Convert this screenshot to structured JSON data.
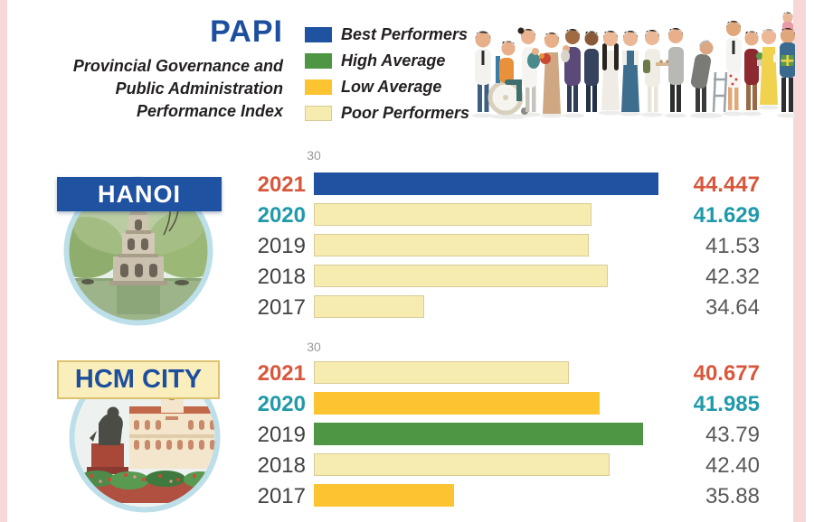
{
  "title_block": {
    "title": "PAPI",
    "subtitle_lines": [
      "Provincial Governance and",
      "Public Administration",
      "Performance Index"
    ]
  },
  "legend": {
    "items": [
      {
        "label": "Best Performers",
        "tier": "best",
        "color": "#2052a2"
      },
      {
        "label": "High Average",
        "tier": "high",
        "color": "#4e9544"
      },
      {
        "label": "Low Average",
        "tier": "low",
        "color": "#fcc431"
      },
      {
        "label": "Poor Performers",
        "tier": "poor",
        "color": "#f7ecb0"
      }
    ]
  },
  "colors": {
    "best": "#2052a2",
    "high": "#4e9544",
    "low": "#fcc431",
    "poor": "#f7ecb0",
    "poor-border": "#d8cb96",
    "accent-red": "#d8573c",
    "accent-teal": "#1f9aaa",
    "year-gray": "#414042",
    "value-gray": "#58595b",
    "axis-gray": "#9a9a9a",
    "papi-blue": "#1d4f9e",
    "frame-pink": "#f8d7d9"
  },
  "chart_data": [
    {
      "type": "bar",
      "title": "HANOI",
      "orientation": "horizontal",
      "axis_start_label": "30",
      "xlim": [
        30,
        45
      ],
      "categories": [
        "2021",
        "2020",
        "2019",
        "2018",
        "2017"
      ],
      "values": [
        44.447,
        41.629,
        41.53,
        42.32,
        34.64
      ],
      "value_labels": [
        "44.447",
        "41.629",
        "41.53",
        "42.32",
        "34.64"
      ],
      "tiers": [
        "best",
        "poor",
        "poor",
        "poor",
        "poor"
      ],
      "accents": [
        "red",
        "teal",
        "gray",
        "gray",
        "gray"
      ],
      "legend_position": "top",
      "grid": false
    },
    {
      "type": "bar",
      "title": "HCM CITY",
      "orientation": "horizontal",
      "axis_start_label": "30",
      "xlim": [
        30,
        45
      ],
      "categories": [
        "2021",
        "2020",
        "2019",
        "2018",
        "2017"
      ],
      "values": [
        40.677,
        41.985,
        43.79,
        42.4,
        35.88
      ],
      "value_labels": [
        "40.677",
        "41.985",
        "43.79",
        "42.40",
        "35.88"
      ],
      "tiers": [
        "poor",
        "low",
        "high",
        "poor",
        "low"
      ],
      "accents": [
        "red",
        "teal",
        "gray",
        "gray",
        "gray"
      ],
      "legend_position": "top",
      "grid": false
    }
  ]
}
